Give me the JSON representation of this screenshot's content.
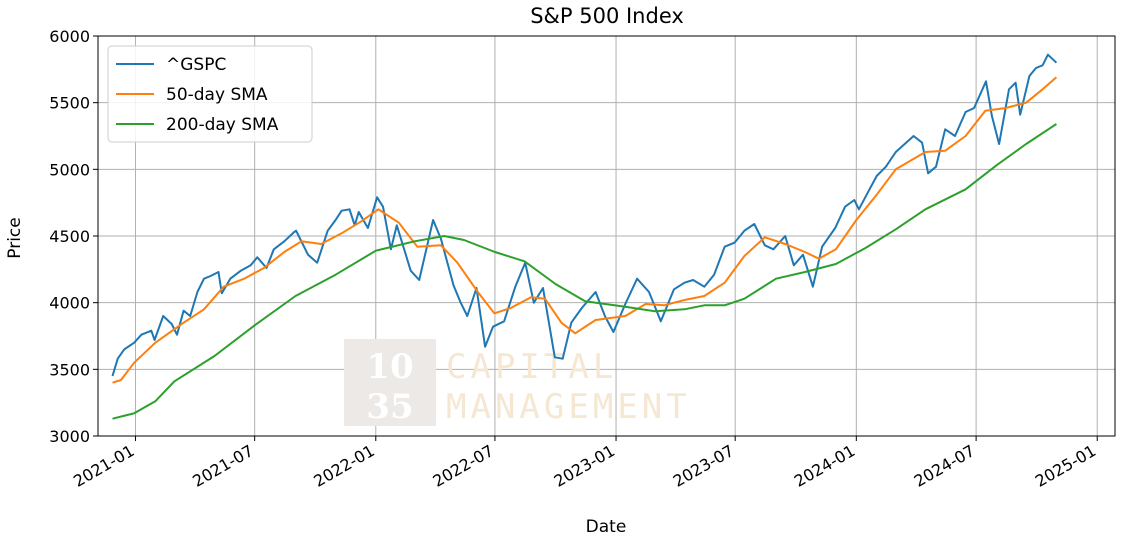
{
  "chart_data": {
    "type": "line",
    "title": "S&P 500 Index",
    "xlabel": "Date",
    "ylabel": "Price",
    "xlim": [
      "2020-11-05",
      "2025-01-28"
    ],
    "ylim": [
      3000,
      6000
    ],
    "x_ticks": [
      "2021-01",
      "2021-07",
      "2022-01",
      "2022-07",
      "2023-01",
      "2023-07",
      "2024-01",
      "2024-07",
      "2025-01"
    ],
    "y_ticks": [
      3000,
      3500,
      4000,
      4500,
      5000,
      5500,
      6000
    ],
    "grid": true,
    "legend_position": "top-left",
    "series": [
      {
        "name": "^GSPC",
        "color": "#1f77b4",
        "points": [
          [
            "2020-11-27",
            3450
          ],
          [
            "2020-12-05",
            3580
          ],
          [
            "2020-12-15",
            3650
          ],
          [
            "2020-12-30",
            3700
          ],
          [
            "2021-01-10",
            3760
          ],
          [
            "2021-01-25",
            3790
          ],
          [
            "2021-01-30",
            3720
          ],
          [
            "2021-02-12",
            3900
          ],
          [
            "2021-02-25",
            3840
          ],
          [
            "2021-03-05",
            3760
          ],
          [
            "2021-03-15",
            3940
          ],
          [
            "2021-03-25",
            3900
          ],
          [
            "2021-04-05",
            4080
          ],
          [
            "2021-04-15",
            4180
          ],
          [
            "2021-04-25",
            4200
          ],
          [
            "2021-05-07",
            4230
          ],
          [
            "2021-05-12",
            4070
          ],
          [
            "2021-05-25",
            4180
          ],
          [
            "2021-06-10",
            4240
          ],
          [
            "2021-06-25",
            4280
          ],
          [
            "2021-07-05",
            4340
          ],
          [
            "2021-07-19",
            4260
          ],
          [
            "2021-07-30",
            4400
          ],
          [
            "2021-08-15",
            4460
          ],
          [
            "2021-08-30",
            4530
          ],
          [
            "2021-09-02",
            4540
          ],
          [
            "2021-09-20",
            4360
          ],
          [
            "2021-10-04",
            4300
          ],
          [
            "2021-10-20",
            4540
          ],
          [
            "2021-11-01",
            4620
          ],
          [
            "2021-11-10",
            4690
          ],
          [
            "2021-11-22",
            4700
          ],
          [
            "2021-11-30",
            4580
          ],
          [
            "2021-12-06",
            4680
          ],
          [
            "2021-12-20",
            4560
          ],
          [
            "2022-01-03",
            4790
          ],
          [
            "2022-01-12",
            4720
          ],
          [
            "2022-01-24",
            4400
          ],
          [
            "2022-02-02",
            4580
          ],
          [
            "2022-02-23",
            4240
          ],
          [
            "2022-03-08",
            4170
          ],
          [
            "2022-03-29",
            4620
          ],
          [
            "2022-04-10",
            4480
          ],
          [
            "2022-04-29",
            4130
          ],
          [
            "2022-05-10",
            4000
          ],
          [
            "2022-05-20",
            3900
          ],
          [
            "2022-06-03",
            4110
          ],
          [
            "2022-06-16",
            3670
          ],
          [
            "2022-06-28",
            3820
          ],
          [
            "2022-07-15",
            3860
          ],
          [
            "2022-08-01",
            4120
          ],
          [
            "2022-08-16",
            4300
          ],
          [
            "2022-08-29",
            4000
          ],
          [
            "2022-09-12",
            4110
          ],
          [
            "2022-09-30",
            3590
          ],
          [
            "2022-10-12",
            3580
          ],
          [
            "2022-10-25",
            3850
          ],
          [
            "2022-11-10",
            3960
          ],
          [
            "2022-12-01",
            4080
          ],
          [
            "2022-12-15",
            3900
          ],
          [
            "2022-12-28",
            3780
          ],
          [
            "2023-01-15",
            3990
          ],
          [
            "2023-02-02",
            4180
          ],
          [
            "2023-02-20",
            4080
          ],
          [
            "2023-03-10",
            3860
          ],
          [
            "2023-03-30",
            4100
          ],
          [
            "2023-04-15",
            4150
          ],
          [
            "2023-04-28",
            4170
          ],
          [
            "2023-05-15",
            4120
          ],
          [
            "2023-05-30",
            4210
          ],
          [
            "2023-06-15",
            4420
          ],
          [
            "2023-06-30",
            4450
          ],
          [
            "2023-07-15",
            4540
          ],
          [
            "2023-07-30",
            4590
          ],
          [
            "2023-08-15",
            4430
          ],
          [
            "2023-08-28",
            4400
          ],
          [
            "2023-09-15",
            4500
          ],
          [
            "2023-09-28",
            4280
          ],
          [
            "2023-10-12",
            4360
          ],
          [
            "2023-10-27",
            4120
          ],
          [
            "2023-11-10",
            4420
          ],
          [
            "2023-11-30",
            4560
          ],
          [
            "2023-12-15",
            4720
          ],
          [
            "2023-12-29",
            4770
          ],
          [
            "2024-01-05",
            4700
          ],
          [
            "2024-01-20",
            4840
          ],
          [
            "2024-02-01",
            4950
          ],
          [
            "2024-02-15",
            5020
          ],
          [
            "2024-03-01",
            5130
          ],
          [
            "2024-03-28",
            5250
          ],
          [
            "2024-04-10",
            5200
          ],
          [
            "2024-04-19",
            4970
          ],
          [
            "2024-05-01",
            5020
          ],
          [
            "2024-05-15",
            5300
          ],
          [
            "2024-05-30",
            5250
          ],
          [
            "2024-06-15",
            5430
          ],
          [
            "2024-06-28",
            5460
          ],
          [
            "2024-07-16",
            5660
          ],
          [
            "2024-07-25",
            5400
          ],
          [
            "2024-08-05",
            5190
          ],
          [
            "2024-08-20",
            5600
          ],
          [
            "2024-08-30",
            5650
          ],
          [
            "2024-09-06",
            5410
          ],
          [
            "2024-09-20",
            5700
          ],
          [
            "2024-09-30",
            5760
          ],
          [
            "2024-10-10",
            5780
          ],
          [
            "2024-10-18",
            5860
          ],
          [
            "2024-10-31",
            5800
          ]
        ]
      },
      {
        "name": "50-day SMA",
        "color": "#ff7f0e",
        "points": [
          [
            "2020-11-27",
            3400
          ],
          [
            "2020-12-10",
            3420
          ],
          [
            "2020-12-30",
            3550
          ],
          [
            "2021-01-31",
            3700
          ],
          [
            "2021-03-15",
            3850
          ],
          [
            "2021-04-15",
            3950
          ],
          [
            "2021-05-15",
            4120
          ],
          [
            "2021-06-15",
            4180
          ],
          [
            "2021-07-15",
            4260
          ],
          [
            "2021-08-15",
            4380
          ],
          [
            "2021-09-10",
            4460
          ],
          [
            "2021-10-10",
            4440
          ],
          [
            "2021-11-10",
            4520
          ],
          [
            "2021-12-10",
            4610
          ],
          [
            "2022-01-05",
            4700
          ],
          [
            "2022-02-05",
            4600
          ],
          [
            "2022-03-05",
            4420
          ],
          [
            "2022-04-10",
            4430
          ],
          [
            "2022-05-05",
            4300
          ],
          [
            "2022-06-05",
            4080
          ],
          [
            "2022-06-30",
            3920
          ],
          [
            "2022-07-25",
            3960
          ],
          [
            "2022-08-25",
            4040
          ],
          [
            "2022-09-15",
            4030
          ],
          [
            "2022-10-10",
            3850
          ],
          [
            "2022-10-31",
            3770
          ],
          [
            "2022-12-01",
            3870
          ],
          [
            "2023-01-15",
            3900
          ],
          [
            "2023-02-15",
            3990
          ],
          [
            "2023-03-15",
            3980
          ],
          [
            "2023-04-15",
            4020
          ],
          [
            "2023-05-15",
            4050
          ],
          [
            "2023-06-15",
            4150
          ],
          [
            "2023-07-15",
            4350
          ],
          [
            "2023-08-15",
            4490
          ],
          [
            "2023-09-15",
            4440
          ],
          [
            "2023-10-15",
            4380
          ],
          [
            "2023-11-05",
            4330
          ],
          [
            "2023-12-01",
            4400
          ],
          [
            "2024-01-01",
            4620
          ],
          [
            "2024-02-01",
            4810
          ],
          [
            "2024-03-01",
            5000
          ],
          [
            "2024-04-15",
            5130
          ],
          [
            "2024-05-15",
            5140
          ],
          [
            "2024-06-15",
            5250
          ],
          [
            "2024-07-15",
            5440
          ],
          [
            "2024-08-15",
            5460
          ],
          [
            "2024-09-15",
            5500
          ],
          [
            "2024-10-10",
            5600
          ],
          [
            "2024-10-31",
            5690
          ]
        ]
      },
      {
        "name": "200-day SMA",
        "color": "#2ca02c",
        "points": [
          [
            "2020-11-27",
            3130
          ],
          [
            "2020-12-30",
            3170
          ],
          [
            "2021-01-31",
            3260
          ],
          [
            "2021-03-01",
            3410
          ],
          [
            "2021-05-01",
            3600
          ],
          [
            "2021-07-01",
            3830
          ],
          [
            "2021-09-01",
            4050
          ],
          [
            "2021-11-01",
            4210
          ],
          [
            "2022-01-01",
            4390
          ],
          [
            "2022-03-01",
            4460
          ],
          [
            "2022-04-15",
            4500
          ],
          [
            "2022-05-15",
            4470
          ],
          [
            "2022-07-01",
            4380
          ],
          [
            "2022-08-15",
            4310
          ],
          [
            "2022-10-01",
            4140
          ],
          [
            "2022-11-15",
            4010
          ],
          [
            "2023-01-15",
            3970
          ],
          [
            "2023-03-01",
            3935
          ],
          [
            "2023-04-15",
            3950
          ],
          [
            "2023-05-15",
            3980
          ],
          [
            "2023-06-15",
            3980
          ],
          [
            "2023-07-15",
            4030
          ],
          [
            "2023-09-01",
            4180
          ],
          [
            "2023-10-15",
            4230
          ],
          [
            "2023-12-01",
            4290
          ],
          [
            "2024-01-15",
            4410
          ],
          [
            "2024-03-01",
            4550
          ],
          [
            "2024-04-15",
            4700
          ],
          [
            "2024-06-15",
            4850
          ],
          [
            "2024-08-01",
            5030
          ],
          [
            "2024-09-15",
            5190
          ],
          [
            "2024-10-31",
            5340
          ]
        ]
      }
    ],
    "watermark": {
      "number_top": "10",
      "number_bottom": "35",
      "word_top": "CAPITAL",
      "word_bottom": "MANAGEMENT"
    }
  }
}
